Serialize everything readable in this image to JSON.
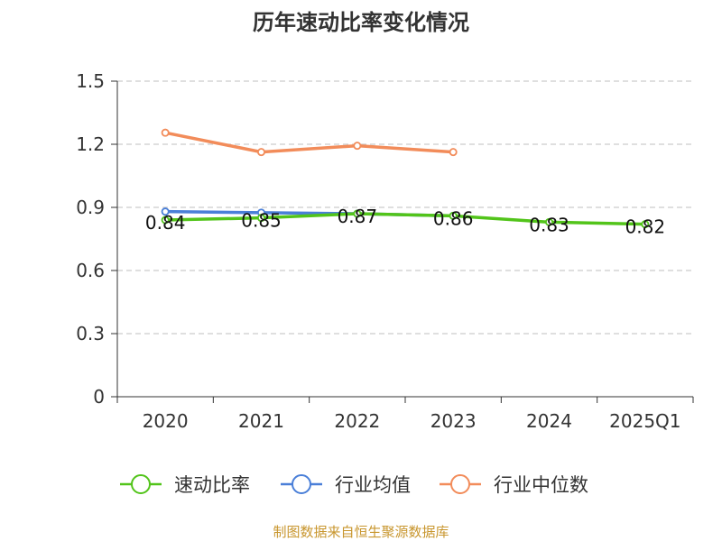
{
  "chart_data": {
    "type": "line",
    "title": "历年速动比率变化情况",
    "categories": [
      "2020",
      "2021",
      "2022",
      "2023",
      "2024",
      "2025Q1"
    ],
    "y_ticks": [
      "0",
      "0.3",
      "0.6",
      "0.9",
      "1.2",
      "1.5"
    ],
    "ylim": [
      0,
      1.5
    ],
    "grid": true,
    "legend_position": "bottom",
    "series": [
      {
        "name": "速动比率",
        "color": "#52c41a",
        "values": [
          0.84,
          0.85,
          0.87,
          0.86,
          0.83,
          0.82
        ],
        "labels": [
          "0.84",
          "0.85",
          "0.87",
          "0.86",
          "0.83",
          "0.82"
        ],
        "show_labels": true
      },
      {
        "name": "行业均值",
        "color": "#4a7fd8",
        "values": [
          0.88,
          0.875,
          0.87,
          0.86,
          null,
          null
        ],
        "show_labels": false
      },
      {
        "name": "行业中位数",
        "color": "#f28c5a",
        "values": [
          1.255,
          1.163,
          1.193,
          1.163,
          null,
          null
        ],
        "show_labels": false
      }
    ],
    "source": "制图数据来自恒生聚源数据库"
  }
}
